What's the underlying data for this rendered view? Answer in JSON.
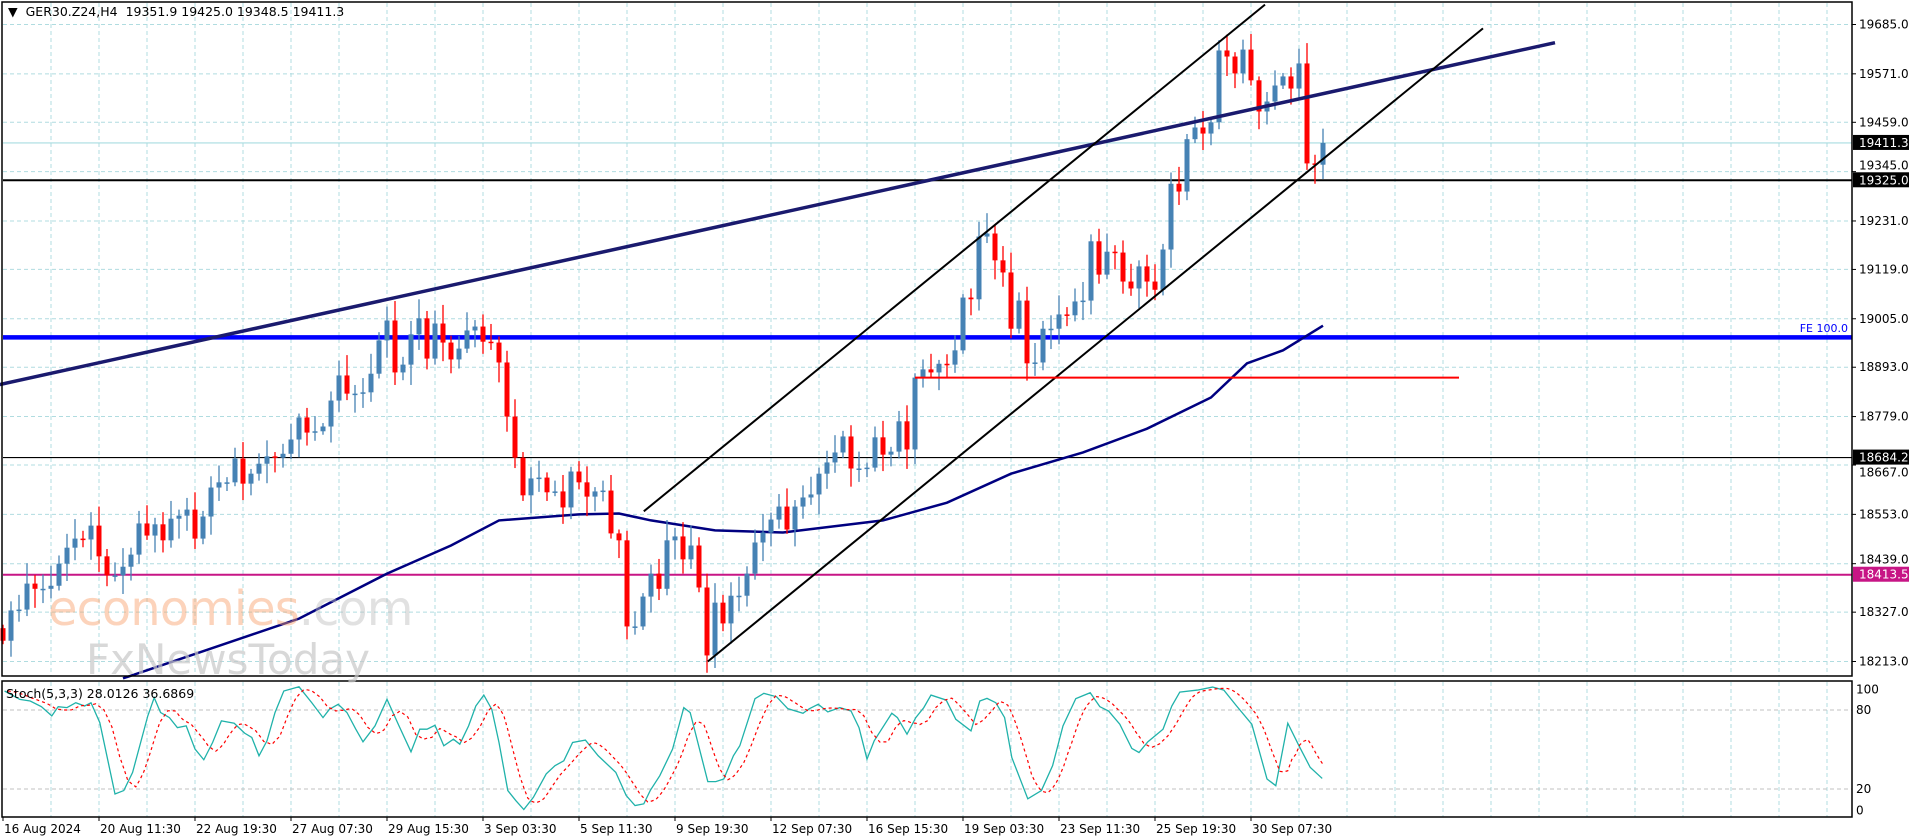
{
  "header": {
    "title": "GER30.Z24,H4",
    "ohlc": "19351.9 19425.0 19348.5 19411.3"
  },
  "price_axis": {
    "ticks": [
      {
        "label": "19685.0",
        "value": 19685
      },
      {
        "label": "19571.0",
        "value": 19571
      },
      {
        "label": "19459.0",
        "value": 19459
      },
      {
        "label": "19345.0",
        "value": 19345
      },
      {
        "label": "19231.0",
        "value": 19231
      },
      {
        "label": "19119.0",
        "value": 19119
      },
      {
        "label": "19005.0",
        "value": 19005
      },
      {
        "label": "18893.0",
        "value": 18893
      },
      {
        "label": "18779.0",
        "value": 18779
      },
      {
        "label": "18667.0",
        "value": 18667
      },
      {
        "label": "18553.0",
        "value": 18553
      },
      {
        "label": "18439.0",
        "value": 18439
      },
      {
        "label": "18327.0",
        "value": 18327
      },
      {
        "label": "18213.0",
        "value": 18213
      }
    ]
  },
  "price_markers": [
    {
      "label": "19411.3",
      "value": 19411.3,
      "bg": "#000000",
      "line": "#a8dce0",
      "line_width": 1.2
    },
    {
      "label": "19325.0",
      "value": 19325.0,
      "bg": "#000000",
      "line": "#000000",
      "line_width": 2
    },
    {
      "label": "18684.2",
      "value": 18684.2,
      "bg": "#000000",
      "line": "#000000",
      "line_width": 1.2
    },
    {
      "label": "18413.5",
      "value": 18413.5,
      "bg": "#c71585",
      "line": "#c71585",
      "line_width": 2
    }
  ],
  "fe_label": "FE 100.0",
  "time_axis": {
    "labels": [
      "16 Aug 2024",
      "20 Aug 11:30",
      "22 Aug 19:30",
      "27 Aug 07:30",
      "29 Aug 15:30",
      "3 Sep 03:30",
      "5 Sep 11:30",
      "9 Sep 19:30",
      "12 Sep 07:30",
      "16 Sep 15:30",
      "19 Sep 03:30",
      "23 Sep 11:30",
      "25 Sep 19:30",
      "30 Sep 07:30"
    ]
  },
  "watermark": {
    "brand_a": "economies",
    "brand_b": ".com",
    "brand_c": "FxNewsToday"
  },
  "stoch": {
    "label": "Stoch(5,3,3) 28.0126 36.6869",
    "ticks": [
      {
        "label": "100",
        "value": 100
      },
      {
        "label": "80",
        "value": 80
      },
      {
        "label": "20",
        "value": 20
      },
      {
        "label": "0",
        "value": 0
      }
    ],
    "k_color": "#20b2aa",
    "d_color": "#ff0000",
    "k_points": [
      [
        0.2,
        94.4
      ],
      [
        2.1,
        88
      ],
      [
        3.4,
        86.8
      ],
      [
        4.8,
        82.5
      ],
      [
        6.1,
        75.5
      ],
      [
        6.9,
        82.5
      ],
      [
        8,
        81.8
      ],
      [
        9.1,
        85.5
      ],
      [
        10.2,
        83
      ],
      [
        11,
        85.5
      ],
      [
        12.1,
        70.4
      ],
      [
        14,
        16.2
      ],
      [
        15.1,
        18.8
      ],
      [
        16.2,
        32.6
      ],
      [
        18.1,
        75.5
      ],
      [
        18.9,
        89.3
      ],
      [
        19.7,
        78
      ],
      [
        20.8,
        74.2
      ],
      [
        21.8,
        66.6
      ],
      [
        22.9,
        67.9
      ],
      [
        24,
        50.3
      ],
      [
        25.1,
        42.2
      ],
      [
        26.2,
        55.3
      ],
      [
        27.3,
        71.7
      ],
      [
        28.9,
        69.9
      ],
      [
        30.2,
        62.4
      ],
      [
        31.1,
        59.1
      ],
      [
        32,
        45.2
      ],
      [
        33,
        56.6
      ],
      [
        34,
        78
      ],
      [
        35.1,
        94.4
      ],
      [
        37,
        97.6
      ],
      [
        38.6,
        85.5
      ],
      [
        40,
        74.2
      ],
      [
        40.8,
        80.5
      ],
      [
        41.9,
        84.3
      ],
      [
        43,
        78
      ],
      [
        44.1,
        65.4
      ],
      [
        45,
        55.8
      ],
      [
        46.5,
        67.9
      ],
      [
        48,
        88.1
      ],
      [
        49.5,
        67.9
      ],
      [
        51,
        48.2
      ],
      [
        52.1,
        65.4
      ],
      [
        53,
        65.4
      ],
      [
        54,
        68.4
      ],
      [
        55.1,
        52.8
      ],
      [
        56.3,
        57.8
      ],
      [
        57.1,
        54
      ],
      [
        58.2,
        67.9
      ],
      [
        59.1,
        83
      ],
      [
        60.1,
        91.3
      ],
      [
        61.1,
        80.5
      ],
      [
        62,
        55.3
      ],
      [
        63.1,
        18.8
      ],
      [
        64.1,
        11.2
      ],
      [
        65.1,
        4.4
      ],
      [
        66.3,
        13.7
      ],
      [
        67.9,
        31.4
      ],
      [
        69,
        37.7
      ],
      [
        70.1,
        41.4
      ],
      [
        71.2,
        55.3
      ],
      [
        72.8,
        57.1
      ],
      [
        74.4,
        45.2
      ],
      [
        76.6,
        32.6
      ],
      [
        77.9,
        15
      ],
      [
        79,
        7.4
      ],
      [
        80.1,
        8.7
      ],
      [
        80.9,
        18.8
      ],
      [
        82.1,
        30.1
      ],
      [
        83.7,
        50.3
      ],
      [
        85.1,
        81.8
      ],
      [
        85.9,
        78
      ],
      [
        88.1,
        25.6
      ],
      [
        89.1,
        25.6
      ],
      [
        90.1,
        27.6
      ],
      [
        91.3,
        45.2
      ],
      [
        92.1,
        52.8
      ],
      [
        94,
        88.6
      ],
      [
        95.1,
        92.6
      ],
      [
        96.7,
        90
      ],
      [
        98.1,
        81
      ],
      [
        100,
        77.5
      ],
      [
        100.8,
        81
      ],
      [
        101.9,
        84.3
      ],
      [
        103.1,
        78.5
      ],
      [
        104.6,
        81.8
      ],
      [
        106,
        79.2
      ],
      [
        107,
        66.6
      ],
      [
        108,
        42.7
      ],
      [
        108.9,
        56.6
      ],
      [
        111.1,
        77.5
      ],
      [
        111.8,
        74.2
      ],
      [
        113,
        61.6
      ],
      [
        114.1,
        74.2
      ],
      [
        115.1,
        81.8
      ],
      [
        116,
        91.3
      ],
      [
        117.9,
        87.5
      ],
      [
        119.1,
        72.9
      ],
      [
        121,
        64.1
      ],
      [
        122.1,
        86.8
      ],
      [
        123,
        88.8
      ],
      [
        124.1,
        85.5
      ],
      [
        125.2,
        74.2
      ],
      [
        126.1,
        43.9
      ],
      [
        128.1,
        12.5
      ],
      [
        129.8,
        18.8
      ],
      [
        131.2,
        37.7
      ],
      [
        132.5,
        67.9
      ],
      [
        134.1,
        88.6
      ],
      [
        135.9,
        93.1
      ],
      [
        137.1,
        82.5
      ],
      [
        138.2,
        79.2
      ],
      [
        139.6,
        69.2
      ],
      [
        141.1,
        50.8
      ],
      [
        142,
        47.7
      ],
      [
        143.1,
        55.8
      ],
      [
        145,
        65.4
      ],
      [
        146.1,
        83
      ],
      [
        147.1,
        93.6
      ],
      [
        149.3,
        95.1
      ],
      [
        151.2,
        97.4
      ],
      [
        152.6,
        95.1
      ],
      [
        154.2,
        83
      ],
      [
        156.1,
        69.2
      ],
      [
        158,
        27.6
      ],
      [
        159.1,
        22.5
      ],
      [
        160.6,
        69.9
      ],
      [
        162,
        52.8
      ],
      [
        163.4,
        36.4
      ],
      [
        164.9,
        28.0126
      ]
    ]
  },
  "chart_data": {
    "type": "candlestick",
    "symbol": "GER30.Z24",
    "timeframe": "H4",
    "ylim": [
      18213,
      19685
    ],
    "bull_color": "#4682b4",
    "bear_color": "#ff0000",
    "first_open": 18290,
    "closes": [
      18261,
      18331,
      18333,
      18393,
      18381,
      18381,
      18388,
      18439,
      18476,
      18497,
      18495,
      18527,
      18456,
      18412,
      18412,
      18432,
      18460,
      18532,
      18504,
      18530,
      18493,
      18543,
      18550,
      18564,
      18497,
      18548,
      18615,
      18627,
      18627,
      18682,
      18624,
      18647,
      18670,
      18687,
      18684,
      18693,
      18726,
      18777,
      18742,
      18745,
      18756,
      18816,
      18874,
      18832,
      18832,
      18835,
      18878,
      18955,
      19001,
      18881,
      18899,
      18969,
      19006,
      18913,
      18994,
      18950,
      18911,
      18936,
      18978,
      18987,
      18952,
      18950,
      18904,
      18779,
      18684,
      18597,
      18636,
      18638,
      18604,
      18606,
      18569,
      18652,
      18627,
      18594,
      18606,
      18608,
      18509,
      18493,
      18294,
      18294,
      18363,
      18416,
      18381,
      18493,
      18502,
      18449,
      18481,
      18384,
      18227,
      18349,
      18301,
      18365,
      18365,
      18416,
      18488,
      18511,
      18541,
      18571,
      18518,
      18571,
      18592,
      18599,
      18647,
      18673,
      18696,
      18733,
      18659,
      18659,
      18661,
      18731,
      18691,
      18698,
      18768,
      18703,
      18869,
      18888,
      18881,
      18901,
      18899,
      18932,
      19054,
      19050,
      19195,
      19202,
      19140,
      19112,
      18982,
      19047,
      18902,
      18904,
      18982,
      18982,
      19015,
      19013,
      19045,
      19047,
      19184,
      19107,
      19160,
      19158,
      19091,
      19075,
      19126,
      19091,
      19072,
      19165,
      19317,
      19299,
      19420,
      19447,
      19433,
      19459,
      19625,
      19611,
      19572,
      19627,
      19556,
      19484,
      19507,
      19544,
      19565,
      19537,
      19595,
      19364,
      19361,
      19411.3
    ],
    "moving_average": {
      "color": "#000080",
      "points": [
        [
          15,
          18174
        ],
        [
          37,
          18312
        ],
        [
          48,
          18416
        ],
        [
          56,
          18481
        ],
        [
          62,
          18539
        ],
        [
          72,
          18553
        ],
        [
          77,
          18555
        ],
        [
          81,
          18539
        ],
        [
          89,
          18516
        ],
        [
          97.5,
          18511
        ],
        [
          110,
          18539
        ],
        [
          118,
          18580
        ],
        [
          126,
          18647
        ],
        [
          135,
          18696
        ],
        [
          143,
          18751
        ],
        [
          151,
          18823
        ],
        [
          155.5,
          18902
        ],
        [
          160,
          18932
        ],
        [
          165,
          18989
        ]
      ]
    },
    "trendlines": [
      {
        "name": "long-resistance-line",
        "color": "#1a1a6e",
        "width": 3.5,
        "from": [
          -0.4,
          18853
        ],
        "to": [
          194,
          19643
        ]
      },
      {
        "name": "channel-upper-line",
        "color": "#000000",
        "width": 2,
        "from": [
          80.1,
          18560
        ],
        "to": [
          157.75,
          19731
        ]
      },
      {
        "name": "channel-lower-line",
        "color": "#000000",
        "width": 2,
        "from": [
          88.1,
          18213
        ],
        "to": [
          185,
          19676
        ]
      },
      {
        "name": "support-segment-line",
        "color": "#ff0000",
        "width": 2,
        "from": [
          114,
          18869
        ],
        "to": [
          182,
          18869
        ]
      }
    ],
    "fe_level": {
      "value": 18962,
      "color": "#0000ff"
    }
  }
}
